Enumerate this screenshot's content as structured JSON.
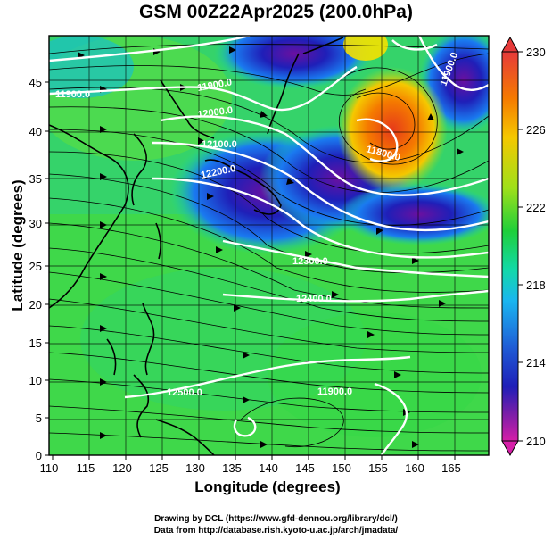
{
  "title": "GSM 00Z22Apr2025 (200.0hPa)",
  "axes": {
    "xlabel": "Longitude (degrees)",
    "ylabel": "Latitude (degrees)",
    "xticks": [
      "110",
      "115",
      "120",
      "125",
      "130",
      "135",
      "140",
      "145",
      "150",
      "155",
      "160",
      "165"
    ],
    "yticks": [
      "0",
      "5",
      "10",
      "15",
      "20",
      "25",
      "30",
      "35",
      "40",
      "45"
    ]
  },
  "colorbar": {
    "labels": [
      "230",
      "226",
      "222",
      "218",
      "214",
      "210"
    ],
    "colors": [
      "#e63a3a",
      "#f5a300",
      "#f5e100",
      "#9fe01a",
      "#1fcf3a",
      "#12d9a8",
      "#1ab6f0",
      "#1f5cd6",
      "#1f1fb8",
      "#7a1fa8",
      "#d61fa8"
    ]
  },
  "contours": [
    {
      "label": "11900.0"
    },
    {
      "label": "11900.0"
    },
    {
      "label": "12000.0"
    },
    {
      "label": "12100.0"
    },
    {
      "label": "12200.0"
    },
    {
      "label": "12300.0"
    },
    {
      "label": "12400.0"
    },
    {
      "label": "12500.0"
    },
    {
      "label": "11900.0"
    },
    {
      "label": "11800.0"
    },
    {
      "label": "11900.0"
    }
  ],
  "credits": {
    "line1": "Drawing by DCL (https://www.gfd-dennou.org/library/dcl/)",
    "line2": "Data from http://database.rish.kyoto-u.ac.jp/arch/jmadata/"
  }
}
